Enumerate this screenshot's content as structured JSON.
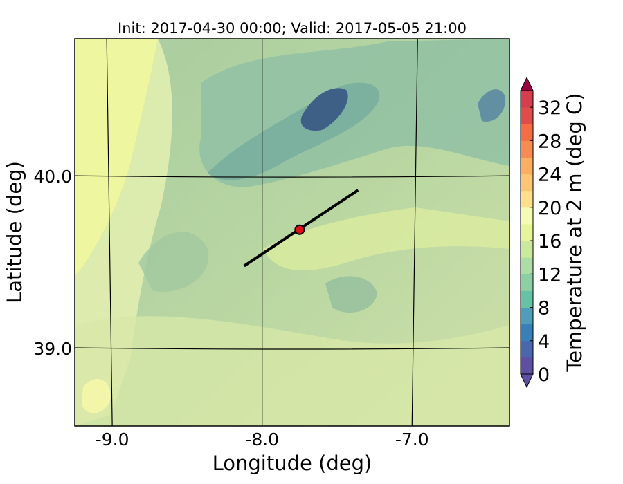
{
  "chart_data": {
    "type": "heatmap",
    "title": "Init: 2017-04-30 00:00; Valid: 2017-05-05 21:00",
    "xlabel": "Longitude (deg)",
    "ylabel": "Latitude (deg)",
    "xlim": [
      -9.25,
      -6.35
    ],
    "ylim": [
      38.55,
      40.8
    ],
    "x_ticks": [
      {
        "value": -9.0,
        "label": "-9.0"
      },
      {
        "value": -8.0,
        "label": "-8.0"
      },
      {
        "value": -7.0,
        "label": "-7.0"
      }
    ],
    "y_ticks": [
      {
        "value": 40.0,
        "label": "40.0"
      },
      {
        "value": 39.0,
        "label": "39.0"
      }
    ],
    "grid": true,
    "transect": {
      "start": [
        -8.12,
        39.48
      ],
      "end": [
        -7.36,
        39.92
      ]
    },
    "point": {
      "lon": -7.75,
      "lat": 39.69,
      "color": "#dd1111"
    },
    "colorbar": {
      "label": "Temperature at 2 m (deg C)",
      "min": 0,
      "max": 34,
      "step": 2,
      "extend": "both",
      "ticks": [
        0,
        4,
        8,
        12,
        16,
        20,
        24,
        28,
        32
      ],
      "colors": [
        "#5e4fa2",
        "#4a66ad",
        "#3880b9",
        "#4d9dbb",
        "#66c2a5",
        "#8ccfa4",
        "#abdda4",
        "#cbe99d",
        "#e6f598",
        "#f5fbb2",
        "#fee08b",
        "#fdc574",
        "#fdae61",
        "#f88b51",
        "#f46d43",
        "#de4c4b",
        "#d53e4f"
      ],
      "under_color": "#5e4fa2",
      "over_color": "#9e0142"
    }
  }
}
